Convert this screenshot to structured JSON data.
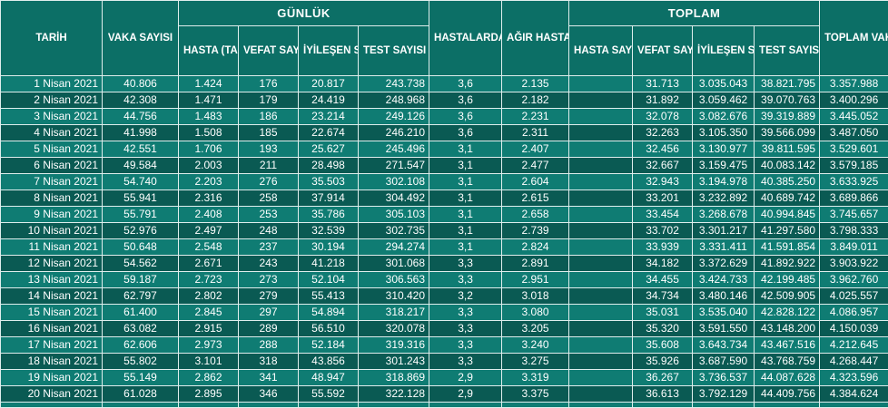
{
  "headers": {
    "tarih": "TARİH",
    "vaka": "VAKA SAYISI",
    "gunluk": "GÜNLÜK",
    "hasta_tani": "HASTA (TANI) SAYISI",
    "gunluk_vefat": "VEFAT SAYISI",
    "gunluk_iyilesen": "İYİLEŞEN SAYISI",
    "gunluk_test": "TEST SAYISI",
    "zaturre": "HASTALARDA ZATÜRRE ORANI %",
    "agir": "AĞIR HASTA SAYISI",
    "toplam": "TOPLAM",
    "toplam_hasta": "HASTA SAYISI",
    "toplam_vefat": "VEFAT SAYISI",
    "toplam_iyilesen": "İYİLEŞEN SAYISI",
    "toplam_test": "TEST SAYISI",
    "toplam_vaka": "TOPLAM VAKA SAYISI"
  },
  "rows": [
    [
      "1 Nisan 2021",
      "40.806",
      "1.424",
      "176",
      "20.817",
      "243.738",
      "3,6",
      "2.135",
      "",
      "31.713",
      "3.035.043",
      "38.821.795",
      "3.357.988"
    ],
    [
      "2 Nisan 2021",
      "42.308",
      "1.471",
      "179",
      "24.419",
      "248.968",
      "3,6",
      "2.182",
      "",
      "31.892",
      "3.059.462",
      "39.070.763",
      "3.400.296"
    ],
    [
      "3 Nisan 2021",
      "44.756",
      "1.483",
      "186",
      "23.214",
      "249.126",
      "3,6",
      "2.231",
      "",
      "32.078",
      "3.082.676",
      "39.319.889",
      "3.445.052"
    ],
    [
      "4 Nisan 2021",
      "41.998",
      "1.508",
      "185",
      "22.674",
      "246.210",
      "3,6",
      "2.311",
      "",
      "32.263",
      "3.105.350",
      "39.566.099",
      "3.487.050"
    ],
    [
      "5 Nisan 2021",
      "42.551",
      "1.706",
      "193",
      "25.627",
      "245.496",
      "3,1",
      "2.407",
      "",
      "32.456",
      "3.130.977",
      "39.811.595",
      "3.529.601"
    ],
    [
      "6 Nisan 2021",
      "49.584",
      "2.003",
      "211",
      "28.498",
      "271.547",
      "3,1",
      "2.477",
      "",
      "32.667",
      "3.159.475",
      "40.083.142",
      "3.579.185"
    ],
    [
      "7 Nisan 2021",
      "54.740",
      "2.203",
      "276",
      "35.503",
      "302.108",
      "3,1",
      "2.604",
      "",
      "32.943",
      "3.194.978",
      "40.385.250",
      "3.633.925"
    ],
    [
      "8 Nisan 2021",
      "55.941",
      "2.316",
      "258",
      "37.914",
      "304.492",
      "3,1",
      "2.615",
      "",
      "33.201",
      "3.232.892",
      "40.689.742",
      "3.689.866"
    ],
    [
      "9 Nisan 2021",
      "55.791",
      "2.408",
      "253",
      "35.786",
      "305.103",
      "3,1",
      "2.658",
      "",
      "33.454",
      "3.268.678",
      "40.994.845",
      "3.745.657"
    ],
    [
      "10 Nisan 2021",
      "52.976",
      "2.497",
      "248",
      "32.539",
      "302.735",
      "3,1",
      "2.739",
      "",
      "33.702",
      "3.301.217",
      "41.297.580",
      "3.798.333"
    ],
    [
      "11 Nisan 2021",
      "50.648",
      "2.548",
      "237",
      "30.194",
      "294.274",
      "3,1",
      "2.824",
      "",
      "33.939",
      "3.331.411",
      "41.591.854",
      "3.849.011"
    ],
    [
      "12 Nisan 2021",
      "54.562",
      "2.671",
      "243",
      "41.218",
      "301.068",
      "3,3",
      "2.891",
      "",
      "34.182",
      "3.372.629",
      "41.892.922",
      "3.903.922"
    ],
    [
      "13 Nisan 2021",
      "59.187",
      "2.723",
      "273",
      "52.104",
      "306.563",
      "3,3",
      "2.951",
      "",
      "34.455",
      "3.424.733",
      "42.199.485",
      "3.962.760"
    ],
    [
      "14 Nisan 2021",
      "62.797",
      "2.802",
      "279",
      "55.413",
      "310.420",
      "3,2",
      "3.018",
      "",
      "34.734",
      "3.480.146",
      "42.509.905",
      "4.025.557"
    ],
    [
      "15 Nisan 2021",
      "61.400",
      "2.845",
      "297",
      "54.894",
      "318.217",
      "3,3",
      "3.080",
      "",
      "35.031",
      "3.535.040",
      "42.828.122",
      "4.086.957"
    ],
    [
      "16 Nisan 2021",
      "63.082",
      "2.915",
      "289",
      "56.510",
      "320.078",
      "3,3",
      "3.205",
      "",
      "35.320",
      "3.591.550",
      "43.148.200",
      "4.150.039"
    ],
    [
      "17 Nisan 2021",
      "62.606",
      "2.973",
      "288",
      "52.184",
      "319.316",
      "3,3",
      "3.240",
      "",
      "35.608",
      "3.643.734",
      "43.467.516",
      "4.212.645"
    ],
    [
      "18 Nisan 2021",
      "55.802",
      "3.101",
      "318",
      "43.856",
      "301.243",
      "3,3",
      "3.275",
      "",
      "35.926",
      "3.687.590",
      "43.768.759",
      "4.268.447"
    ],
    [
      "19 Nisan 2021",
      "55.149",
      "2.862",
      "341",
      "48.947",
      "318.869",
      "2,9",
      "3.319",
      "",
      "36.267",
      "3.736.537",
      "44.087.628",
      "4.323.596"
    ],
    [
      "20 Nisan 2021",
      "61.028",
      "2.895",
      "346",
      "55.592",
      "322.128",
      "2,9",
      "3.375",
      "",
      "36.613",
      "3.792.129",
      "44.409.756",
      "4.384.624"
    ]
  ]
}
